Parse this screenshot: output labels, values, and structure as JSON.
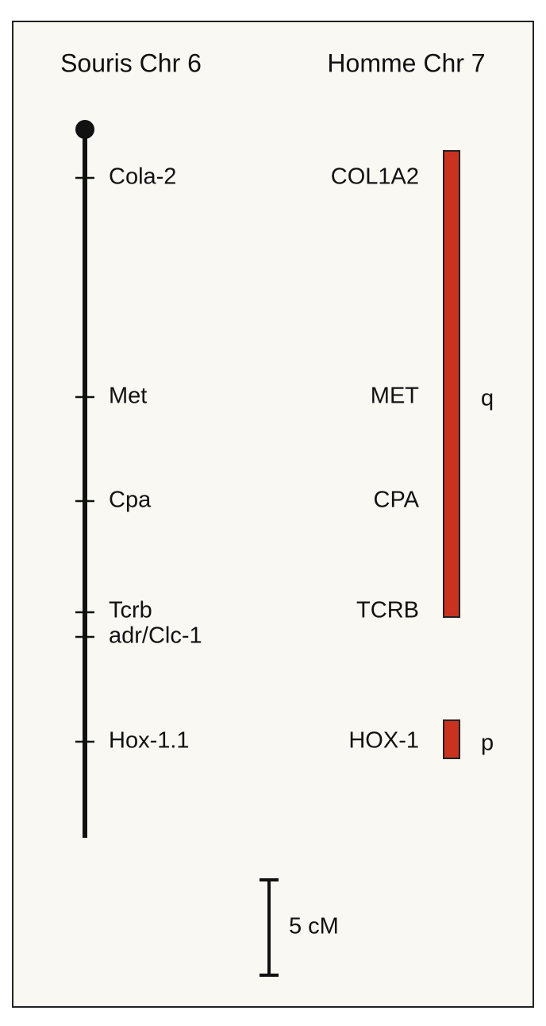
{
  "titles": {
    "mouse": "Souris Chr 6",
    "human": "Homme Chr 7"
  },
  "mouse_markers": [
    "Cola-2",
    "Met",
    "Cpa",
    "Tcrb",
    "adr/Clc-1",
    "Hox-1.1"
  ],
  "human_markers": [
    "COL1A2",
    "MET",
    "CPA",
    "TCRB",
    "HOX-1"
  ],
  "arms": {
    "long": "q",
    "short": "p"
  },
  "scale": {
    "label": "5 cM"
  }
}
